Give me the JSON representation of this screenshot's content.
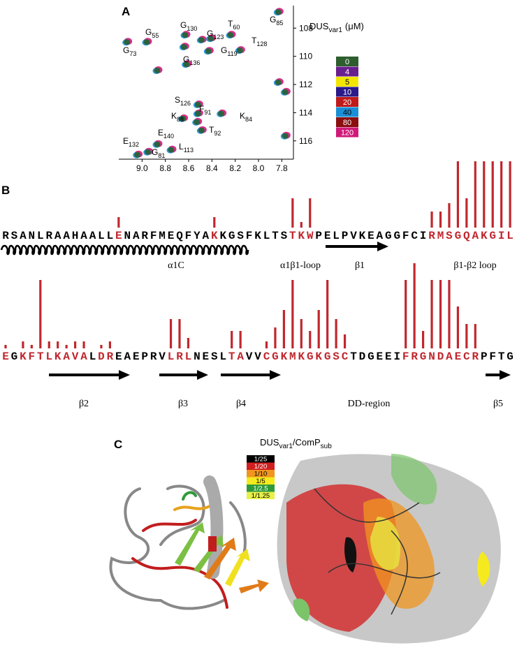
{
  "panel_labels": [
    "A",
    "B",
    "C"
  ],
  "panel_a": {
    "xlim": [
      9.2,
      7.7
    ],
    "ylim": [
      106.4,
      117.3
    ],
    "xticks": [
      {
        "value": 9,
        "label": "9.0"
      },
      8.8,
      8.6,
      8.4,
      8.2,
      {
        "value": 8,
        "label": "8.0"
      },
      7.8
    ],
    "yticks": [
      108,
      110,
      112,
      114,
      116
    ],
    "peaks": [
      {
        "x": 9.13,
        "y": 108.99
      },
      {
        "x": 8.96,
        "y": 108.99
      },
      {
        "x": 8.87,
        "y": 111.01
      },
      {
        "x": 8.63,
        "y": 108.49
      },
      {
        "x": 8.64,
        "y": 109.33
      },
      {
        "x": 8.49,
        "y": 108.84
      },
      {
        "x": 8.41,
        "y": 108.74
      },
      {
        "x": 8.24,
        "y": 108.49
      },
      {
        "x": 8.16,
        "y": 109.58
      },
      {
        "x": 8.43,
        "y": 109.63
      },
      {
        "x": 8.62,
        "y": 110.57
      },
      {
        "x": 8.52,
        "y": 113.43
      },
      {
        "x": 8.52,
        "y": 114.07
      },
      {
        "x": 8.53,
        "y": 114.67
      },
      {
        "x": 8.65,
        "y": 114.42
      },
      {
        "x": 8.32,
        "y": 114.07
      },
      {
        "x": 8.49,
        "y": 115.26
      },
      {
        "x": 8.87,
        "y": 116.25
      },
      {
        "x": 8.95,
        "y": 116.79
      },
      {
        "x": 8.75,
        "y": 116.64
      },
      {
        "x": 9.04,
        "y": 116.99
      },
      {
        "x": 7.83,
        "y": 106.86
      },
      {
        "x": 7.83,
        "y": 111.85
      },
      {
        "x": 7.77,
        "y": 115.65
      },
      {
        "x": 7.77,
        "y": 112.54
      }
    ],
    "peak_labels": [
      {
        "residue": "G",
        "number": "55"
      },
      {
        "residue": "G",
        "number": "73"
      },
      {
        "residue": "G",
        "number": "130"
      },
      {
        "residue": "G",
        "number": "123"
      },
      {
        "residue": "T",
        "number": "60"
      },
      {
        "residue": "T",
        "number": "128"
      },
      {
        "residue": "G",
        "number": "85"
      },
      {
        "residue": "G",
        "number": "119"
      },
      {
        "residue": "G",
        "number": "136"
      },
      {
        "residue": "S",
        "number": "126"
      },
      {
        "residue": "F",
        "number": "91"
      },
      {
        "residue": "K",
        "number": "88"
      },
      {
        "residue": "K",
        "number": "84"
      },
      {
        "residue": "T",
        "number": "92"
      },
      {
        "residue": "E",
        "number": "140"
      },
      {
        "residue": "E",
        "number": "132"
      },
      {
        "residue": "G",
        "number": "81"
      },
      {
        "residue": "L",
        "number": "113"
      }
    ],
    "legend": {
      "title": {
        "base": "DUS",
        "sub": "var1",
        "rest": "(μM)"
      },
      "entries": [
        {
          "label": 0,
          "color": "#2e5e2e"
        },
        {
          "label": 4,
          "color": "#6a1f8f"
        },
        {
          "label": 5,
          "color": "#f2e600"
        },
        {
          "label": 10,
          "color": "#2a1a8a"
        },
        {
          "label": 20,
          "color": "#c01b1b"
        },
        {
          "label": 40,
          "color": "#1a8fd6"
        },
        {
          "label": 80,
          "color": "#8a1010"
        },
        {
          "label": 120,
          "color": "#d01a7a"
        }
      ]
    }
  },
  "panel_b": {
    "highlight_color": "#c0272d",
    "rows": [
      {
        "letters": [
          "R",
          "S",
          "A",
          "N",
          "L",
          "R",
          "A",
          "A",
          "H",
          "A",
          "A",
          "L",
          "L",
          "E",
          "N",
          "A",
          "R",
          "F",
          "M",
          "E",
          "Q",
          "F",
          "Y",
          "A",
          "K",
          "K",
          "G",
          "S",
          "F",
          "K",
          "L",
          "T",
          "S",
          "T",
          "K",
          "W",
          "P",
          "E",
          "L",
          "P",
          "V",
          "K",
          "E",
          "A",
          "G",
          "G",
          "F",
          "C",
          "I",
          "R",
          "M",
          "S",
          "G",
          "Q",
          "A",
          "K",
          "G",
          "I",
          "L"
        ],
        "red": [
          13,
          24,
          33,
          34,
          35,
          49,
          50,
          51,
          52,
          53,
          54,
          55,
          56,
          57,
          58
        ],
        "bars": [
          0,
          0,
          0,
          0,
          0,
          0,
          0,
          0,
          0,
          0,
          0,
          0,
          0,
          1.5,
          0,
          0,
          0,
          0,
          0,
          0,
          0,
          0,
          0,
          0,
          1.5,
          0,
          0,
          0,
          0,
          0,
          0,
          0,
          0,
          4.2,
          0.8,
          4.2,
          0,
          0,
          0,
          0,
          0,
          0,
          0,
          0,
          0,
          0,
          0,
          0,
          0,
          2.3,
          2.3,
          3.5,
          9.5,
          4.2,
          9.5,
          9.5,
          9.5,
          9.5,
          9.5
        ],
        "labels": [
          "α1C",
          "α1β1-loop",
          "β1",
          "β1-β2 loop"
        ]
      },
      {
        "letters": [
          "E",
          "G",
          "K",
          "F",
          "T",
          "L",
          "K",
          "A",
          "V",
          "A",
          "L",
          "D",
          "R",
          "E",
          "A",
          "E",
          "P",
          "R",
          "V",
          "L",
          "R",
          "L",
          "N",
          "E",
          "S",
          "L",
          "T",
          "A",
          "V",
          "V",
          "C",
          "G",
          "K",
          "M",
          "K",
          "G",
          "K",
          "G",
          "S",
          "C",
          "T",
          "D",
          "G",
          "E",
          "E",
          "I",
          "F",
          "R",
          "G",
          "N",
          "D",
          "A",
          "E",
          "C",
          "R",
          "P",
          "F",
          "T",
          "G"
        ],
        "red": [
          0,
          2,
          3,
          4,
          5,
          6,
          7,
          8,
          9,
          11,
          12,
          19,
          20,
          21,
          26,
          27,
          30,
          31,
          32,
          33,
          34,
          35,
          36,
          37,
          38,
          39,
          46,
          47,
          48,
          49,
          50,
          51,
          52,
          53,
          54
        ],
        "bars": [
          0.5,
          0,
          1,
          0.5,
          9.8,
          1,
          1,
          0.5,
          1,
          1,
          0,
          0.5,
          1,
          0,
          0,
          0,
          0,
          0,
          0,
          4.2,
          4.2,
          1.5,
          0,
          0,
          0,
          0,
          2.5,
          2.5,
          0,
          0,
          1,
          3,
          5.5,
          9.8,
          4.2,
          2.5,
          5.5,
          9.8,
          4.2,
          2,
          0,
          0,
          0,
          0,
          0,
          0,
          9.8,
          12.2,
          2.5,
          9.8,
          9.8,
          9.8,
          6,
          3.5,
          3.5,
          0,
          0,
          0,
          0
        ],
        "labels": [
          "β2",
          "β3",
          "β4",
          "DD-region",
          "β5"
        ]
      }
    ]
  },
  "panel_c": {
    "title": {
      "base": "DUS",
      "sub1": "var1",
      "mid": "/ComP",
      "sub2": "sub"
    },
    "legend": [
      {
        "label": "1/25",
        "color": "#000000"
      },
      {
        "label": "1/20",
        "color": "#d01f1f"
      },
      {
        "label": "1/10",
        "color": "#f0961e"
      },
      {
        "label": "1/5",
        "color": "#f5ea1e"
      },
      {
        "label": "1/2.5",
        "color": "#2e9a3a"
      },
      {
        "label": "1/1.25",
        "color": "#e8f04a"
      }
    ]
  }
}
